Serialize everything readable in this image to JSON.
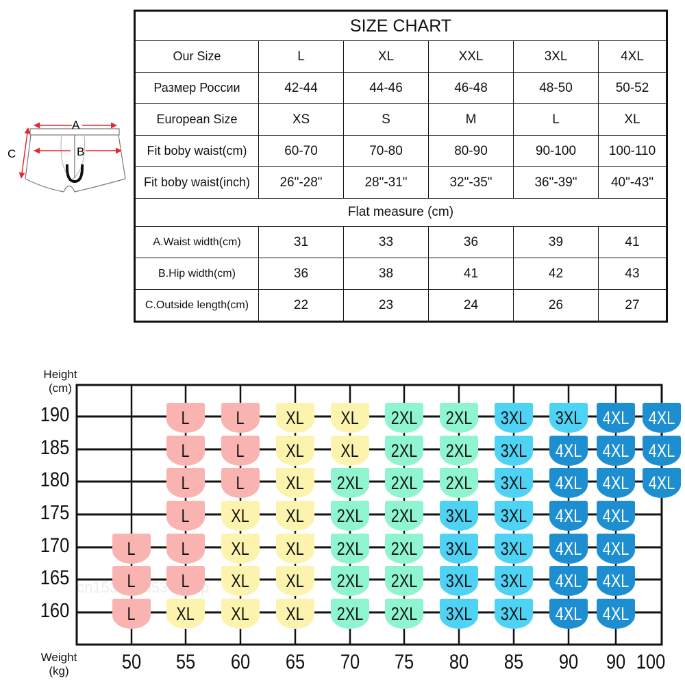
{
  "size_chart": {
    "title": "SIZE CHART",
    "rows": [
      {
        "label": "Our Size",
        "values": [
          "L",
          "XL",
          "XXL",
          "3XL",
          "4XL"
        ]
      },
      {
        "label": "Размер России",
        "values": [
          "42-44",
          "44-46",
          "46-48",
          "48-50",
          "50-52"
        ]
      },
      {
        "label": "European Size",
        "values": [
          "XS",
          "S",
          "M",
          "L",
          "XL"
        ]
      },
      {
        "label": "Fit boby waist(cm)",
        "values": [
          "60-70",
          "70-80",
          "80-90",
          "90-100",
          "100-110"
        ]
      },
      {
        "label": "Fit boby waist(inch)",
        "values": [
          "26\"-28\"",
          "28\"-31\"",
          "32\"-35\"",
          "36\"-39\"",
          "40\"-43\""
        ]
      }
    ],
    "flat_measure": "Flat measure (cm)",
    "measure_rows": [
      {
        "label": "A.Waist width(cm)",
        "values": [
          "31",
          "33",
          "36",
          "39",
          "41"
        ]
      },
      {
        "label": "B.Hip width(cm)",
        "values": [
          "36",
          "38",
          "41",
          "42",
          "43"
        ]
      },
      {
        "label": "C.Outside length(cm)",
        "values": [
          "22",
          "23",
          "24",
          "26",
          "27"
        ]
      }
    ]
  },
  "diagram": {
    "labels": {
      "a": "A",
      "b": "B",
      "c": "C"
    },
    "arrow_color": "#e8262a"
  },
  "chart_data": {
    "type": "table",
    "ylabel": [
      "Height",
      "(cm)"
    ],
    "xlabel": [
      "Weight",
      "(kg)"
    ],
    "x_ticks": [
      "50",
      "55",
      "60",
      "65",
      "70",
      "75",
      "80",
      "85",
      "90",
      "90",
      "100"
    ],
    "y_ticks": [
      "190",
      "185",
      "180",
      "175",
      "170",
      "165",
      "160"
    ],
    "cells": [
      [
        "",
        "L",
        "L",
        "XL",
        "XL",
        "2XL",
        "2XL",
        "3XL",
        "3XL",
        "4XL",
        "4XL"
      ],
      [
        "",
        "L",
        "L",
        "XL",
        "XL",
        "2XL",
        "2XL",
        "3XL",
        "4XL",
        "4XL",
        "4XL"
      ],
      [
        "",
        "L",
        "L",
        "XL",
        "2XL",
        "2XL",
        "2XL",
        "3XL",
        "4XL",
        "4XL",
        "4XL"
      ],
      [
        "",
        "L",
        "XL",
        "XL",
        "2XL",
        "2XL",
        "3XL",
        "3XL",
        "4XL",
        "4XL",
        ""
      ],
      [
        "L",
        "L",
        "XL",
        "XL",
        "2XL",
        "2XL",
        "3XL",
        "3XL",
        "4XL",
        "4XL",
        ""
      ],
      [
        "L",
        "L",
        "XL",
        "XL",
        "2XL",
        "2XL",
        "3XL",
        "3XL",
        "4XL",
        "4XL",
        ""
      ],
      [
        "L",
        "XL",
        "XL",
        "XL",
        "2XL",
        "2XL",
        "3XL",
        "3XL",
        "4XL",
        "4XL",
        ""
      ]
    ],
    "size_colors": {
      "L": "#f9b4b2",
      "XL": "#fcf4ae",
      "2XL": "#8ef5cf",
      "3XL": "#4fd3f4",
      "4XL": "#1d8fd1"
    },
    "watermark": "cn1534706537shop"
  }
}
